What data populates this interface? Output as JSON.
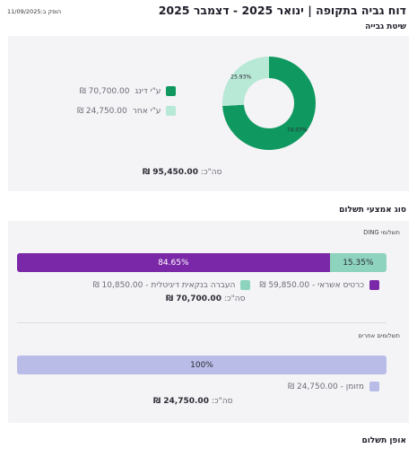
{
  "header": {
    "title": "דוח גביה בתקופה | ינואר 2025 - דצמבר 2025",
    "issued": "הופק ב:11/09/2025"
  },
  "collection_method": {
    "title": "שיטת גבייה",
    "items": [
      {
        "label": "ע\"י דינג",
        "amount": "70,700.00 ₪",
        "pct_label": "74.07%",
        "value": 74.07,
        "color": "#0f9960"
      },
      {
        "label": "ע\"י אחר",
        "amount": "24,750.00 ₪",
        "pct_label": "25.93%",
        "value": 25.93,
        "color": "#b8e8d6"
      }
    ],
    "total_label": "סה\"כ:",
    "total_value": "95,450.00 ₪"
  },
  "payment_types": {
    "title": "סוג אמצעי תשלום",
    "ding": {
      "title": "תשלומי DING",
      "segments": [
        {
          "label": "84.65%",
          "value": 84.65,
          "color": "#7b28a8"
        },
        {
          "label": "15.35%",
          "value": 15.35,
          "color": "#8ed3be"
        }
      ],
      "legend": [
        {
          "text": "כרטיס אשראי - 59,850.00 ₪",
          "color": "#7b28a8"
        },
        {
          "text": "העברה בנקאית דיגיטלית - 10,850.00 ₪",
          "color": "#8ed3be"
        }
      ],
      "total_label": "סה\"כ:",
      "total_value": "70,700.00 ₪"
    },
    "other": {
      "title": "תשלומים אחרים",
      "segments": [
        {
          "label": "100%",
          "value": 100,
          "color": "#b9bce6"
        }
      ],
      "legend": [
        {
          "text": "מזומן - 24,750.00 ₪",
          "color": "#b9bce6"
        }
      ],
      "total_label": "סה\"כ:",
      "total_value": "24,750.00 ₪"
    }
  },
  "payment_schedule": {
    "title": "אופן תשלום"
  }
}
